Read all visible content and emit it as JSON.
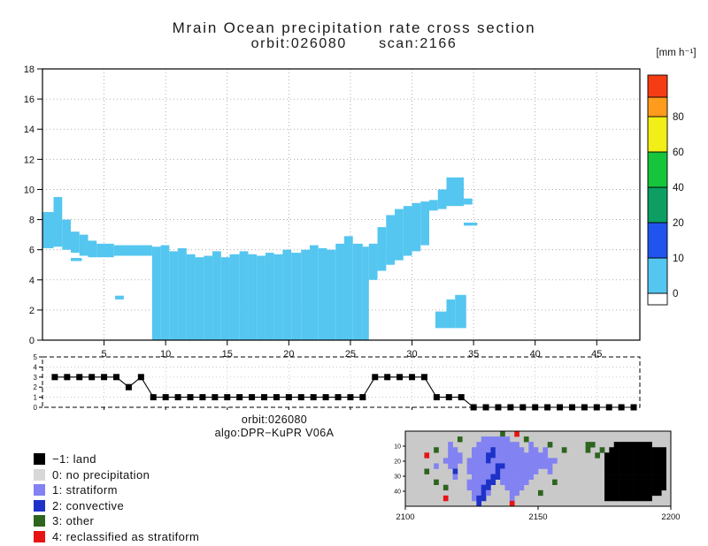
{
  "header": {
    "title": "Mrain Ocean precipitation rate cross section",
    "subtitle": "orbit:026080      scan:2166"
  },
  "colorbar": {
    "unit_label": "[mm h⁻¹]",
    "segments": [
      {
        "color": "#ffffff",
        "height": 13,
        "label": "0"
      },
      {
        "color": "#54c6f0",
        "height": 40,
        "label": "10"
      },
      {
        "color": "#2153ee",
        "height": 40,
        "label": "20"
      },
      {
        "color": "#0c9e62",
        "height": 40,
        "label": "40"
      },
      {
        "color": "#16c53c",
        "height": 40,
        "label": "60"
      },
      {
        "color": "#f2ee18",
        "height": 40,
        "label": "80"
      },
      {
        "color": "#ff9c1e",
        "height": 22,
        "label": null
      },
      {
        "color": "#f53c14",
        "height": 25,
        "label": null
      }
    ]
  },
  "footer": {
    "orbit": "orbit:026080",
    "algo": "algo:DPR−KuPR V06A"
  },
  "legend": {
    "items": [
      {
        "color": "#000000",
        "label": "−1: land"
      },
      {
        "color": "#d8d8d8",
        "label": "0: no precipitation"
      },
      {
        "color": "#8282f2",
        "label": "1: stratiform"
      },
      {
        "color": "#1e32c8",
        "label": "2: convective"
      },
      {
        "color": "#2d641e",
        "label": "3: other"
      },
      {
        "color": "#e61414",
        "label": "4: reclassified as stratiform"
      }
    ]
  },
  "chart_data": [
    {
      "type": "area",
      "title": "Mrain Ocean precipitation rate cross section",
      "subtitle": "orbit:026080 scan:2166",
      "xlabel": "",
      "ylabel": "",
      "units": "mm h⁻¹",
      "x_range": [
        0,
        48.5
      ],
      "y_range": [
        0,
        18
      ],
      "x_ticks": [
        5,
        10,
        15,
        20,
        25,
        30,
        35,
        40,
        45
      ],
      "y_ticks": [
        0,
        2,
        4,
        6,
        8,
        10,
        12,
        14,
        16,
        18
      ],
      "grid": "dotted",
      "fill_color": "#54c6f0",
      "value_band_mm_h": "0-10",
      "filled_cells": [
        [
          0.0,
          0.9,
          6.1,
          8.5
        ],
        [
          0.9,
          1.6,
          6.2,
          9.5
        ],
        [
          1.6,
          2.3,
          6.0,
          8.0
        ],
        [
          2.3,
          3.0,
          5.8,
          7.2
        ],
        [
          3.0,
          3.7,
          5.6,
          7.0
        ],
        [
          2.3,
          3.2,
          5.25,
          5.45
        ],
        [
          3.7,
          4.4,
          5.5,
          6.6
        ],
        [
          4.4,
          5.8,
          5.5,
          6.4
        ],
        [
          5.8,
          8.9,
          5.6,
          6.3
        ],
        [
          5.9,
          6.6,
          2.7,
          2.95
        ],
        [
          8.9,
          9.6,
          0,
          6.2
        ],
        [
          9.6,
          10.3,
          0,
          6.3
        ],
        [
          10.3,
          11.0,
          0,
          5.9
        ],
        [
          11.0,
          11.7,
          0,
          6.1
        ],
        [
          11.7,
          12.4,
          0,
          5.7
        ],
        [
          12.4,
          13.1,
          0,
          5.5
        ],
        [
          13.1,
          13.8,
          0,
          5.6
        ],
        [
          13.8,
          14.5,
          0,
          5.9
        ],
        [
          14.5,
          15.2,
          0,
          5.5
        ],
        [
          15.2,
          16.0,
          0,
          5.7
        ],
        [
          16.0,
          16.7,
          0,
          5.9
        ],
        [
          16.7,
          17.4,
          0,
          5.7
        ],
        [
          17.4,
          18.1,
          0,
          5.6
        ],
        [
          18.1,
          18.8,
          0,
          5.8
        ],
        [
          18.8,
          19.5,
          0,
          5.7
        ],
        [
          19.5,
          20.2,
          0,
          6.0
        ],
        [
          20.2,
          21.0,
          0,
          5.8
        ],
        [
          21.0,
          21.7,
          0,
          6.0
        ],
        [
          21.7,
          22.4,
          0,
          6.3
        ],
        [
          22.4,
          23.1,
          0,
          6.1
        ],
        [
          23.1,
          23.8,
          0,
          6.0
        ],
        [
          23.8,
          24.5,
          0,
          6.4
        ],
        [
          24.5,
          25.2,
          0,
          6.9
        ],
        [
          25.2,
          26.0,
          0,
          6.4
        ],
        [
          26.0,
          26.5,
          0,
          6.2
        ],
        [
          26.5,
          27.2,
          4.0,
          6.4
        ],
        [
          27.2,
          27.9,
          4.6,
          7.5
        ],
        [
          27.9,
          28.6,
          5.0,
          8.3
        ],
        [
          28.6,
          29.3,
          5.3,
          8.7
        ],
        [
          29.3,
          30.0,
          5.6,
          8.9
        ],
        [
          30.0,
          30.7,
          5.9,
          9.1
        ],
        [
          30.7,
          31.4,
          6.3,
          9.2
        ],
        [
          31.4,
          32.1,
          8.6,
          9.3
        ],
        [
          32.1,
          32.8,
          8.7,
          10.0
        ],
        [
          32.8,
          34.2,
          8.9,
          10.8
        ],
        [
          34.2,
          34.9,
          9.0,
          9.4
        ],
        [
          34.2,
          35.3,
          7.6,
          7.8
        ],
        [
          31.9,
          32.8,
          0.8,
          1.9
        ],
        [
          32.8,
          33.5,
          0.8,
          2.7
        ],
        [
          33.5,
          34.4,
          0.8,
          3.0
        ]
      ]
    },
    {
      "type": "line",
      "title": "rain type flag per scan position",
      "x_range": [
        0,
        48.5
      ],
      "y_range": [
        0,
        5
      ],
      "y_ticks": [
        0,
        1,
        2,
        3,
        4,
        5
      ],
      "x_ticks": [
        5,
        10,
        15,
        20,
        25,
        30,
        35,
        40,
        45
      ],
      "marker": "square",
      "x_start": 1,
      "values": [
        3,
        3,
        3,
        3,
        3,
        3,
        2,
        3,
        1,
        1,
        1,
        1,
        1,
        1,
        1,
        1,
        1,
        1,
        1,
        1,
        1,
        1,
        1,
        1,
        1,
        1,
        3,
        3,
        3,
        3,
        3,
        1,
        1,
        1,
        0,
        0,
        0,
        0,
        0,
        0,
        0,
        0,
        0,
        0,
        0,
        0,
        0,
        0
      ]
    },
    {
      "type": "heatmap",
      "title": "rain classification map",
      "x_range": [
        2100,
        2200
      ],
      "x_ticks": [
        2100,
        2150,
        2200
      ],
      "y_ticks": [
        10,
        20,
        30,
        40
      ],
      "y_axis_max": 50,
      "palette": {
        ".": "#c9c9c9",
        "s": "#8282f2",
        "c": "#1e32c8",
        "o": "#2d641e",
        "r": "#e61414",
        "b": "#000000"
      },
      "palette_meaning": {
        ".": "no precipitation",
        "s": "stratiform",
        "c": "convective",
        "o": "other",
        "r": "reclassified as stratiform",
        "b": "land"
      },
      "rows": [
        "....................o..r................................",
        "...........o....ssssss...o..............................",
        ".........s.....sssssssss..s...o.......oo....bbbbbbbb....",
        "......o..ss...sssscssssss.ss.s...o....o..o.bbbbbbbbbbbb.",
        "....r....sss..sssccsssssssssss..........o.bbbbbbbbbbbbb.",
        "........ssss.sssscssssssssssssss..........bbbbbbbbbbbbb.",
        "......s..ss..ssssssccssssssssss...........bbbbbbbbbbbbb.",
        "....o.....c..sssssscssssssss..s...........bbbbbbbbbbbbb.",
        "..........s...ssssccsssssss...............bbbbbbbbbbbbb.",
        "......o......sssscc.ssssss.....o..........bbbbbbbbbbbbb.",
        "........o....ssscc...ssss.................bbbbbbbbbbbbb.",
        "..............sscs....ss....o.............bbbbbbbbbbbb..",
        "........r.....scc.....s...................bbbbbbbbbb....",
        "...............c......r................................."
      ]
    }
  ]
}
